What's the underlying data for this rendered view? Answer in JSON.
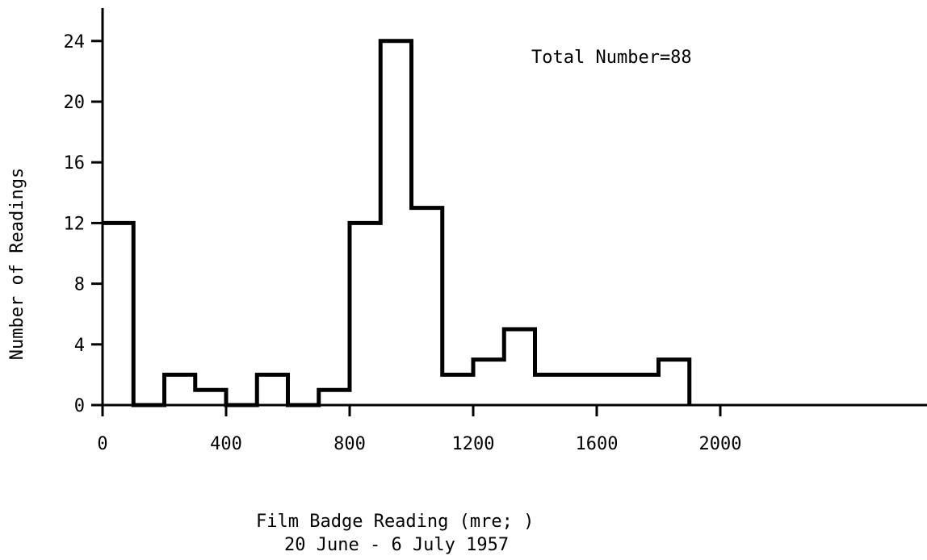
{
  "chart_data": {
    "type": "bar",
    "ylabel": "Number of Readings",
    "xlabel": "Film Badge Reading (mre; )",
    "subtitle": "20 June - 6 July 1957",
    "annotation": "Total Number=88",
    "xlim": [
      0,
      2000
    ],
    "ylim": [
      0,
      24
    ],
    "xticks": [
      "0",
      "400",
      "800",
      "1200",
      "1600",
      "2000"
    ],
    "yticks": [
      "0",
      "4",
      "8",
      "12",
      "16",
      "20",
      "24"
    ],
    "bin_width": 100,
    "bins": [
      {
        "x0": 0,
        "x1": 100,
        "count": 12
      },
      {
        "x0": 100,
        "x1": 200,
        "count": 0
      },
      {
        "x0": 200,
        "x1": 300,
        "count": 2
      },
      {
        "x0": 300,
        "x1": 400,
        "count": 1
      },
      {
        "x0": 400,
        "x1": 500,
        "count": 0
      },
      {
        "x0": 500,
        "x1": 600,
        "count": 2
      },
      {
        "x0": 600,
        "x1": 700,
        "count": 0
      },
      {
        "x0": 700,
        "x1": 800,
        "count": 1
      },
      {
        "x0": 800,
        "x1": 900,
        "count": 12
      },
      {
        "x0": 900,
        "x1": 1000,
        "count": 24
      },
      {
        "x0": 1000,
        "x1": 1100,
        "count": 13
      },
      {
        "x0": 1100,
        "x1": 1200,
        "count": 2
      },
      {
        "x0": 1200,
        "x1": 1300,
        "count": 3
      },
      {
        "x0": 1300,
        "x1": 1400,
        "count": 5
      },
      {
        "x0": 1400,
        "x1": 1500,
        "count": 2
      },
      {
        "x0": 1500,
        "x1": 1600,
        "count": 2
      },
      {
        "x0": 1600,
        "x1": 1700,
        "count": 2
      },
      {
        "x0": 1700,
        "x1": 1800,
        "count": 2
      },
      {
        "x0": 1800,
        "x1": 1900,
        "count": 3
      }
    ],
    "grid": false
  }
}
